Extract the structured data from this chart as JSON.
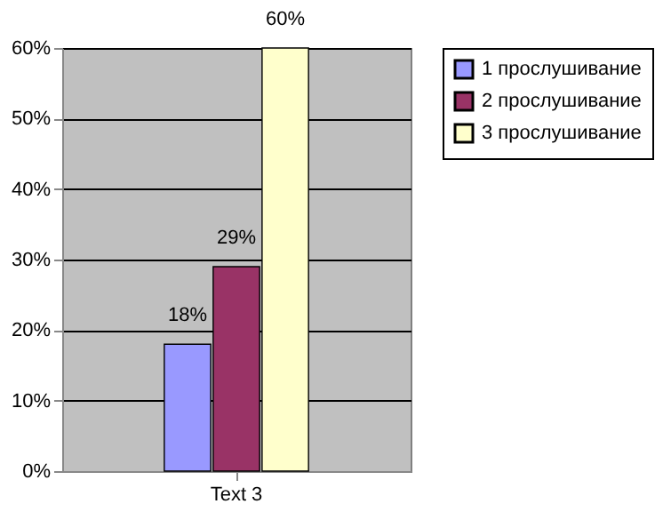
{
  "chart_data": {
    "type": "bar",
    "categories": [
      "Text 3"
    ],
    "series": [
      {
        "name": "1 прослушивание",
        "color": "#9999ff",
        "values": [
          18
        ],
        "value_labels": [
          "18%"
        ]
      },
      {
        "name": "2 прослушивание",
        "color": "#993366",
        "values": [
          29
        ],
        "value_labels": [
          "29%"
        ]
      },
      {
        "name": "3 прослушивание",
        "color": "#ffffcc",
        "values": [
          60
        ],
        "value_labels": [
          "60%"
        ]
      }
    ],
    "ylim": [
      0,
      60
    ],
    "yticks": [
      {
        "value": 0,
        "label": "0%"
      },
      {
        "value": 10,
        "label": "10%"
      },
      {
        "value": 20,
        "label": "20%"
      },
      {
        "value": 30,
        "label": "30%"
      },
      {
        "value": 40,
        "label": "40%"
      },
      {
        "value": 50,
        "label": "50%"
      },
      {
        "value": 60,
        "label": "60%"
      }
    ],
    "grid": "y",
    "legend": "right"
  }
}
